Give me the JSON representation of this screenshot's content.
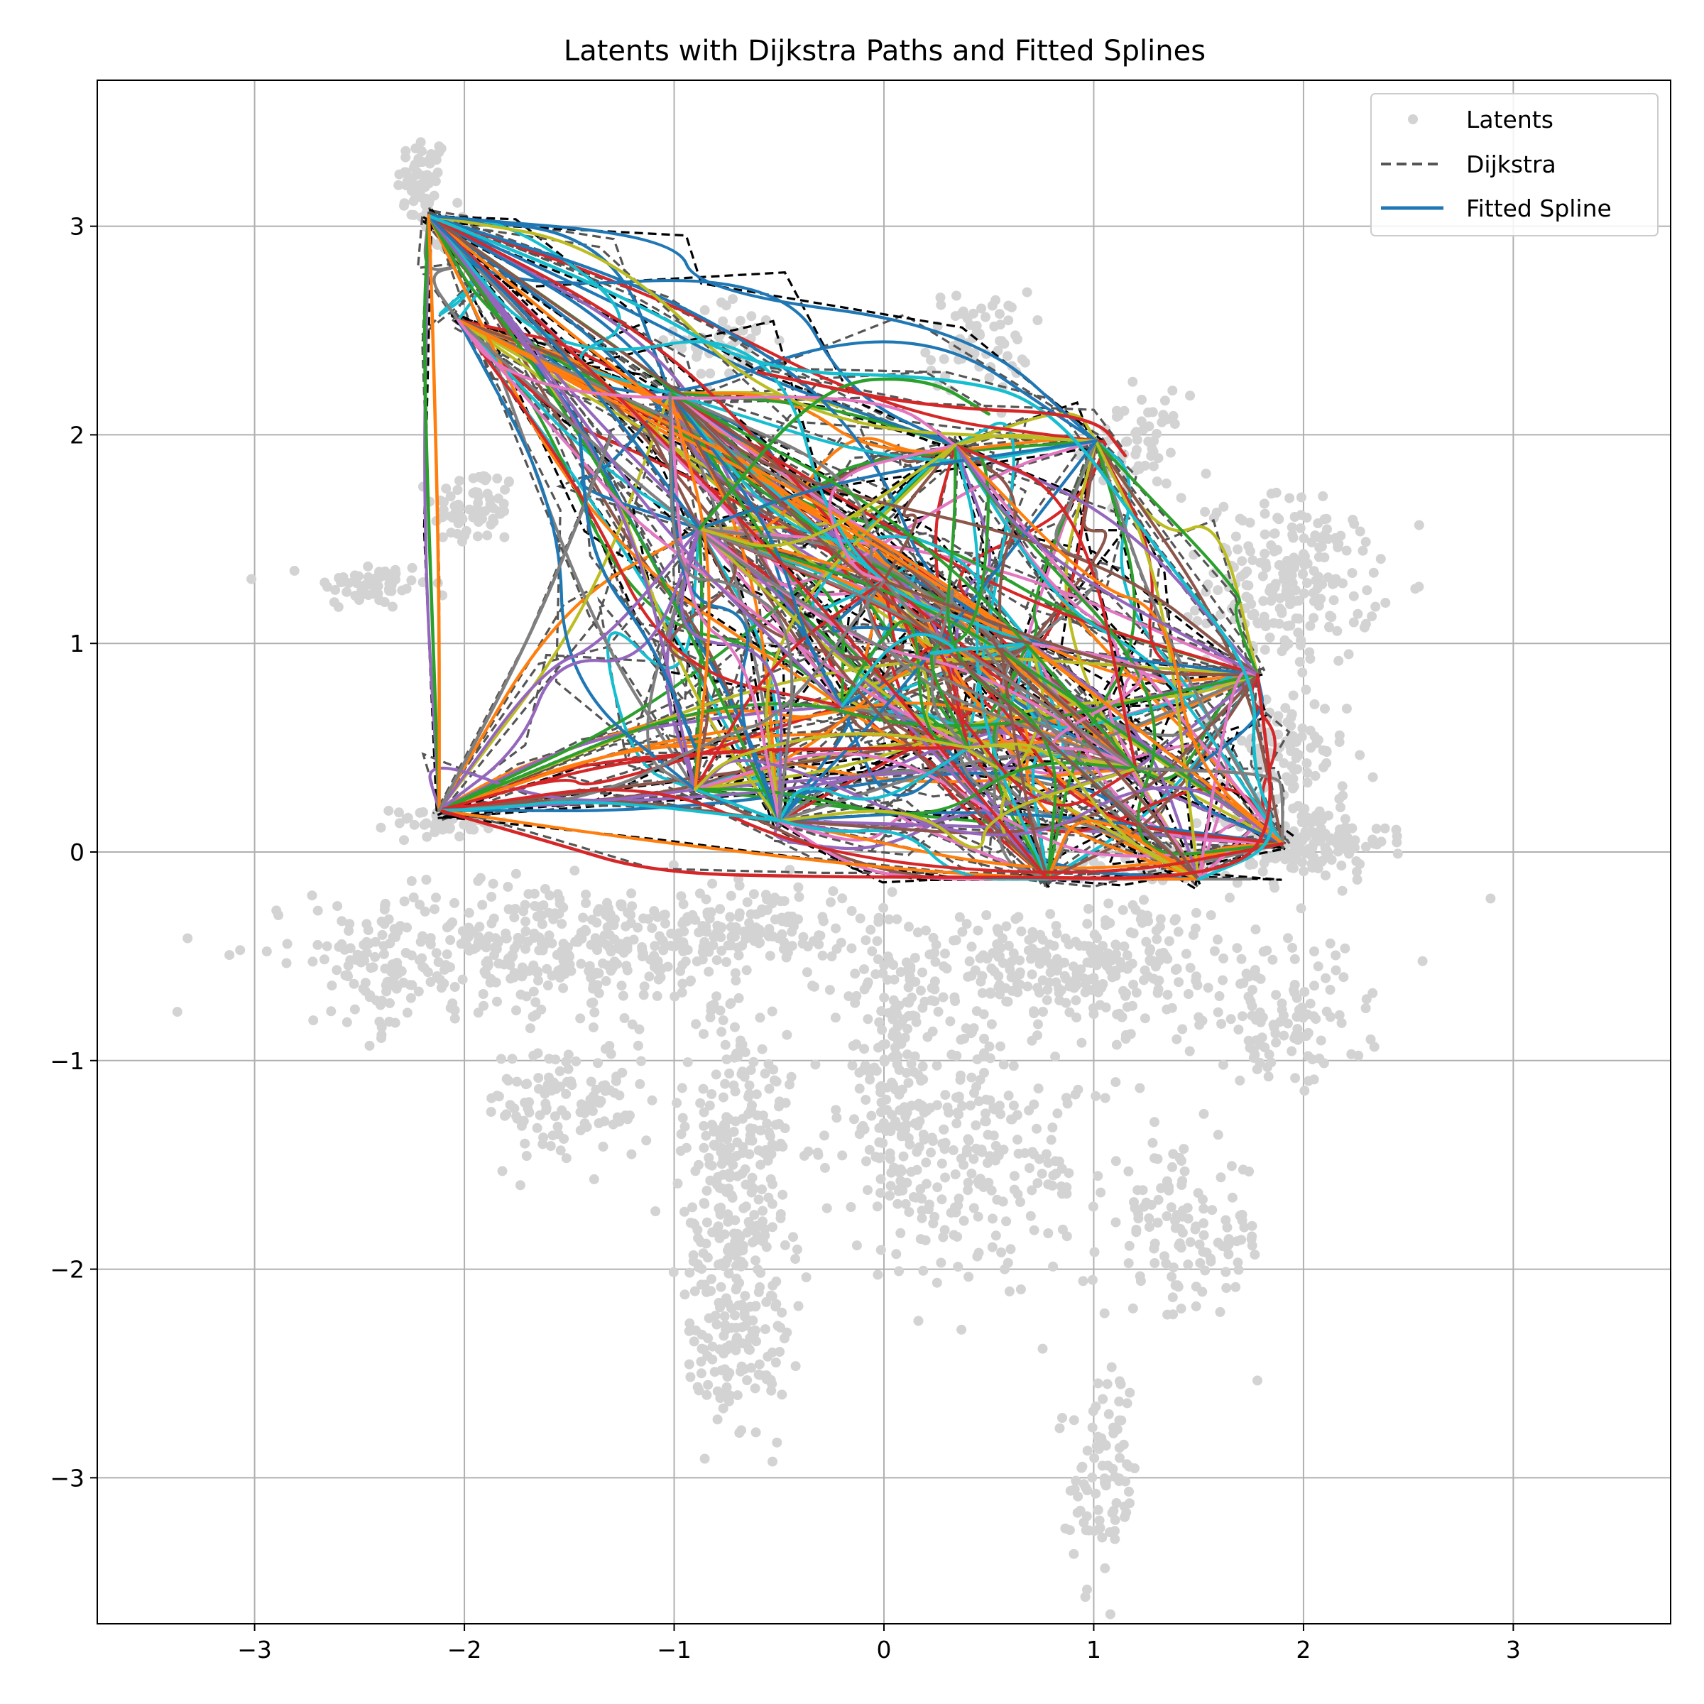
{
  "chart_data": {
    "type": "scatter",
    "title": "Latents with Dijkstra Paths and Fitted Splines",
    "xlabel": "",
    "ylabel": "",
    "xlim": [
      -3.75,
      3.75
    ],
    "ylim": [
      -3.7,
      3.7
    ],
    "xticks": [
      -3,
      -2,
      -1,
      0,
      1,
      2,
      3
    ],
    "yticks": [
      -3,
      -2,
      -1,
      0,
      1,
      2,
      3
    ],
    "grid": true,
    "legend": {
      "placement": "top-right",
      "entries": [
        {
          "label": "Latents",
          "kind": "marker",
          "color": "#d3d3d3"
        },
        {
          "label": "Dijkstra",
          "kind": "dashed-line",
          "color": "#555555"
        },
        {
          "label": "Fitted Spline",
          "kind": "line",
          "color": "#1f77b4"
        }
      ]
    },
    "latent_clusters": [
      {
        "cx": -2.2,
        "cy": 3.2,
        "sx": 0.06,
        "sy": 0.12,
        "n": 60
      },
      {
        "cx": -2.05,
        "cy": 2.95,
        "sx": 0.06,
        "sy": 0.06,
        "n": 25
      },
      {
        "cx": -2.45,
        "cy": 1.28,
        "sx": 0.14,
        "sy": 0.06,
        "n": 60
      },
      {
        "cx": -1.95,
        "cy": 1.65,
        "sx": 0.1,
        "sy": 0.1,
        "n": 70
      },
      {
        "cx": -2.1,
        "cy": 0.15,
        "sx": 0.12,
        "sy": 0.04,
        "n": 50
      },
      {
        "cx": -0.75,
        "cy": 2.45,
        "sx": 0.12,
        "sy": 0.1,
        "n": 50
      },
      {
        "cx": 0.45,
        "cy": 2.45,
        "sx": 0.12,
        "sy": 0.12,
        "n": 70
      },
      {
        "cx": 1.2,
        "cy": 1.95,
        "sx": 0.12,
        "sy": 0.12,
        "n": 60
      },
      {
        "cx": 1.95,
        "cy": 1.3,
        "sx": 0.2,
        "sy": 0.2,
        "n": 220
      },
      {
        "cx": 1.9,
        "cy": 0.45,
        "sx": 0.15,
        "sy": 0.15,
        "n": 90
      },
      {
        "cx": 2.0,
        "cy": 0.05,
        "sx": 0.2,
        "sy": 0.09,
        "n": 160
      },
      {
        "cx": 1.3,
        "cy": -0.05,
        "sx": 0.2,
        "sy": 0.05,
        "n": 60
      },
      {
        "cx": -1.6,
        "cy": -0.45,
        "sx": 0.55,
        "sy": 0.15,
        "n": 380
      },
      {
        "cx": -2.4,
        "cy": -0.6,
        "sx": 0.12,
        "sy": 0.14,
        "n": 60
      },
      {
        "cx": -0.6,
        "cy": -0.35,
        "sx": 0.25,
        "sy": 0.1,
        "n": 120
      },
      {
        "cx": -1.5,
        "cy": -1.2,
        "sx": 0.2,
        "sy": 0.15,
        "n": 120
      },
      {
        "cx": -0.7,
        "cy": -1.6,
        "sx": 0.13,
        "sy": 0.5,
        "n": 320
      },
      {
        "cx": -0.7,
        "cy": -2.35,
        "sx": 0.12,
        "sy": 0.15,
        "n": 80
      },
      {
        "cx": 0.05,
        "cy": -1.1,
        "sx": 0.12,
        "sy": 0.35,
        "n": 150
      },
      {
        "cx": 0.9,
        "cy": -0.55,
        "sx": 0.55,
        "sy": 0.15,
        "n": 340
      },
      {
        "cx": 1.9,
        "cy": -0.85,
        "sx": 0.2,
        "sy": 0.12,
        "n": 90
      },
      {
        "cx": 0.45,
        "cy": -1.45,
        "sx": 0.35,
        "sy": 0.3,
        "n": 240
      },
      {
        "cx": 1.45,
        "cy": -1.85,
        "sx": 0.2,
        "sy": 0.2,
        "n": 120
      },
      {
        "cx": 1.05,
        "cy": -3.0,
        "sx": 0.08,
        "sy": 0.25,
        "n": 90
      }
    ],
    "series_colors": [
      "#1f77b4",
      "#ff7f0e",
      "#2ca02c",
      "#d62728",
      "#9467bd",
      "#8c564b",
      "#e377c2",
      "#7f7f7f",
      "#bcbd22",
      "#17becf"
    ],
    "hub_nodes": [
      {
        "x": -2.17,
        "y": 3.05
      },
      {
        "x": -2.03,
        "y": 2.55
      },
      {
        "x": -2.12,
        "y": 0.2
      },
      {
        "x": -1.02,
        "y": 2.2
      },
      {
        "x": -0.9,
        "y": 0.3
      },
      {
        "x": -0.88,
        "y": 1.55
      },
      {
        "x": -0.5,
        "y": 0.15
      },
      {
        "x": 0.34,
        "y": 1.95
      },
      {
        "x": 1.01,
        "y": 1.97
      },
      {
        "x": 1.78,
        "y": 0.85
      },
      {
        "x": 1.9,
        "y": 0.04
      },
      {
        "x": 1.5,
        "y": -0.13
      },
      {
        "x": 0.78,
        "y": -0.13
      },
      {
        "x": 0.4,
        "y": 0.5
      },
      {
        "x": 0.0,
        "y": 1.3
      },
      {
        "x": 0.7,
        "y": 1.0
      },
      {
        "x": -0.2,
        "y": 0.7
      },
      {
        "x": 1.2,
        "y": 0.4
      }
    ],
    "outer_splines": [
      {
        "color": "#17becf",
        "points": [
          [
            -2.17,
            3.05
          ],
          [
            -1.2,
            2.65
          ],
          [
            -0.6,
            2.3
          ],
          [
            0.3,
            2.28
          ],
          [
            0.8,
            2.15
          ],
          [
            1.3,
            1.45
          ],
          [
            1.78,
            0.85
          ],
          [
            1.75,
            0.4
          ],
          [
            1.9,
            0.04
          ],
          [
            1.5,
            -0.13
          ]
        ]
      },
      {
        "color": "#d62728",
        "points": [
          [
            -2.12,
            0.2
          ],
          [
            -1.6,
            0.05
          ],
          [
            -1.1,
            -0.1
          ],
          [
            -0.3,
            -0.12
          ],
          [
            0.5,
            -0.12
          ],
          [
            1.5,
            -0.13
          ],
          [
            1.88,
            0.05
          ],
          [
            1.78,
            0.85
          ]
        ]
      },
      {
        "color": "#2ca02c",
        "points": [
          [
            -2.17,
            3.05
          ],
          [
            -2.2,
            2.4
          ],
          [
            -2.12,
            0.2
          ]
        ]
      },
      {
        "color": "#ff7f0e",
        "points": [
          [
            -2.17,
            3.05
          ],
          [
            -2.15,
            2.5
          ],
          [
            -2.12,
            1.3
          ],
          [
            -2.12,
            0.2
          ]
        ]
      },
      {
        "color": "#2ca02c",
        "points": [
          [
            -0.88,
            1.55
          ],
          [
            -0.3,
            2.25
          ],
          [
            0.2,
            2.28
          ],
          [
            0.5,
            2.1
          ]
        ]
      },
      {
        "color": "#d62728",
        "points": [
          [
            -0.6,
            2.3
          ],
          [
            0.2,
            2.13
          ],
          [
            1.0,
            2.1
          ],
          [
            1.15,
            1.9
          ]
        ]
      },
      {
        "color": "#7f7f7f",
        "points": [
          [
            -2.12,
            0.2
          ],
          [
            -1.7,
            1.0
          ],
          [
            -1.45,
            1.6
          ],
          [
            -1.3,
            2.0
          ]
        ]
      },
      {
        "color": "#1f77b4",
        "points": [
          [
            -1.45,
            2.0
          ],
          [
            -1.4,
            1.4
          ],
          [
            -1.1,
            1.0
          ],
          [
            -0.9,
            0.5
          ]
        ]
      }
    ]
  }
}
